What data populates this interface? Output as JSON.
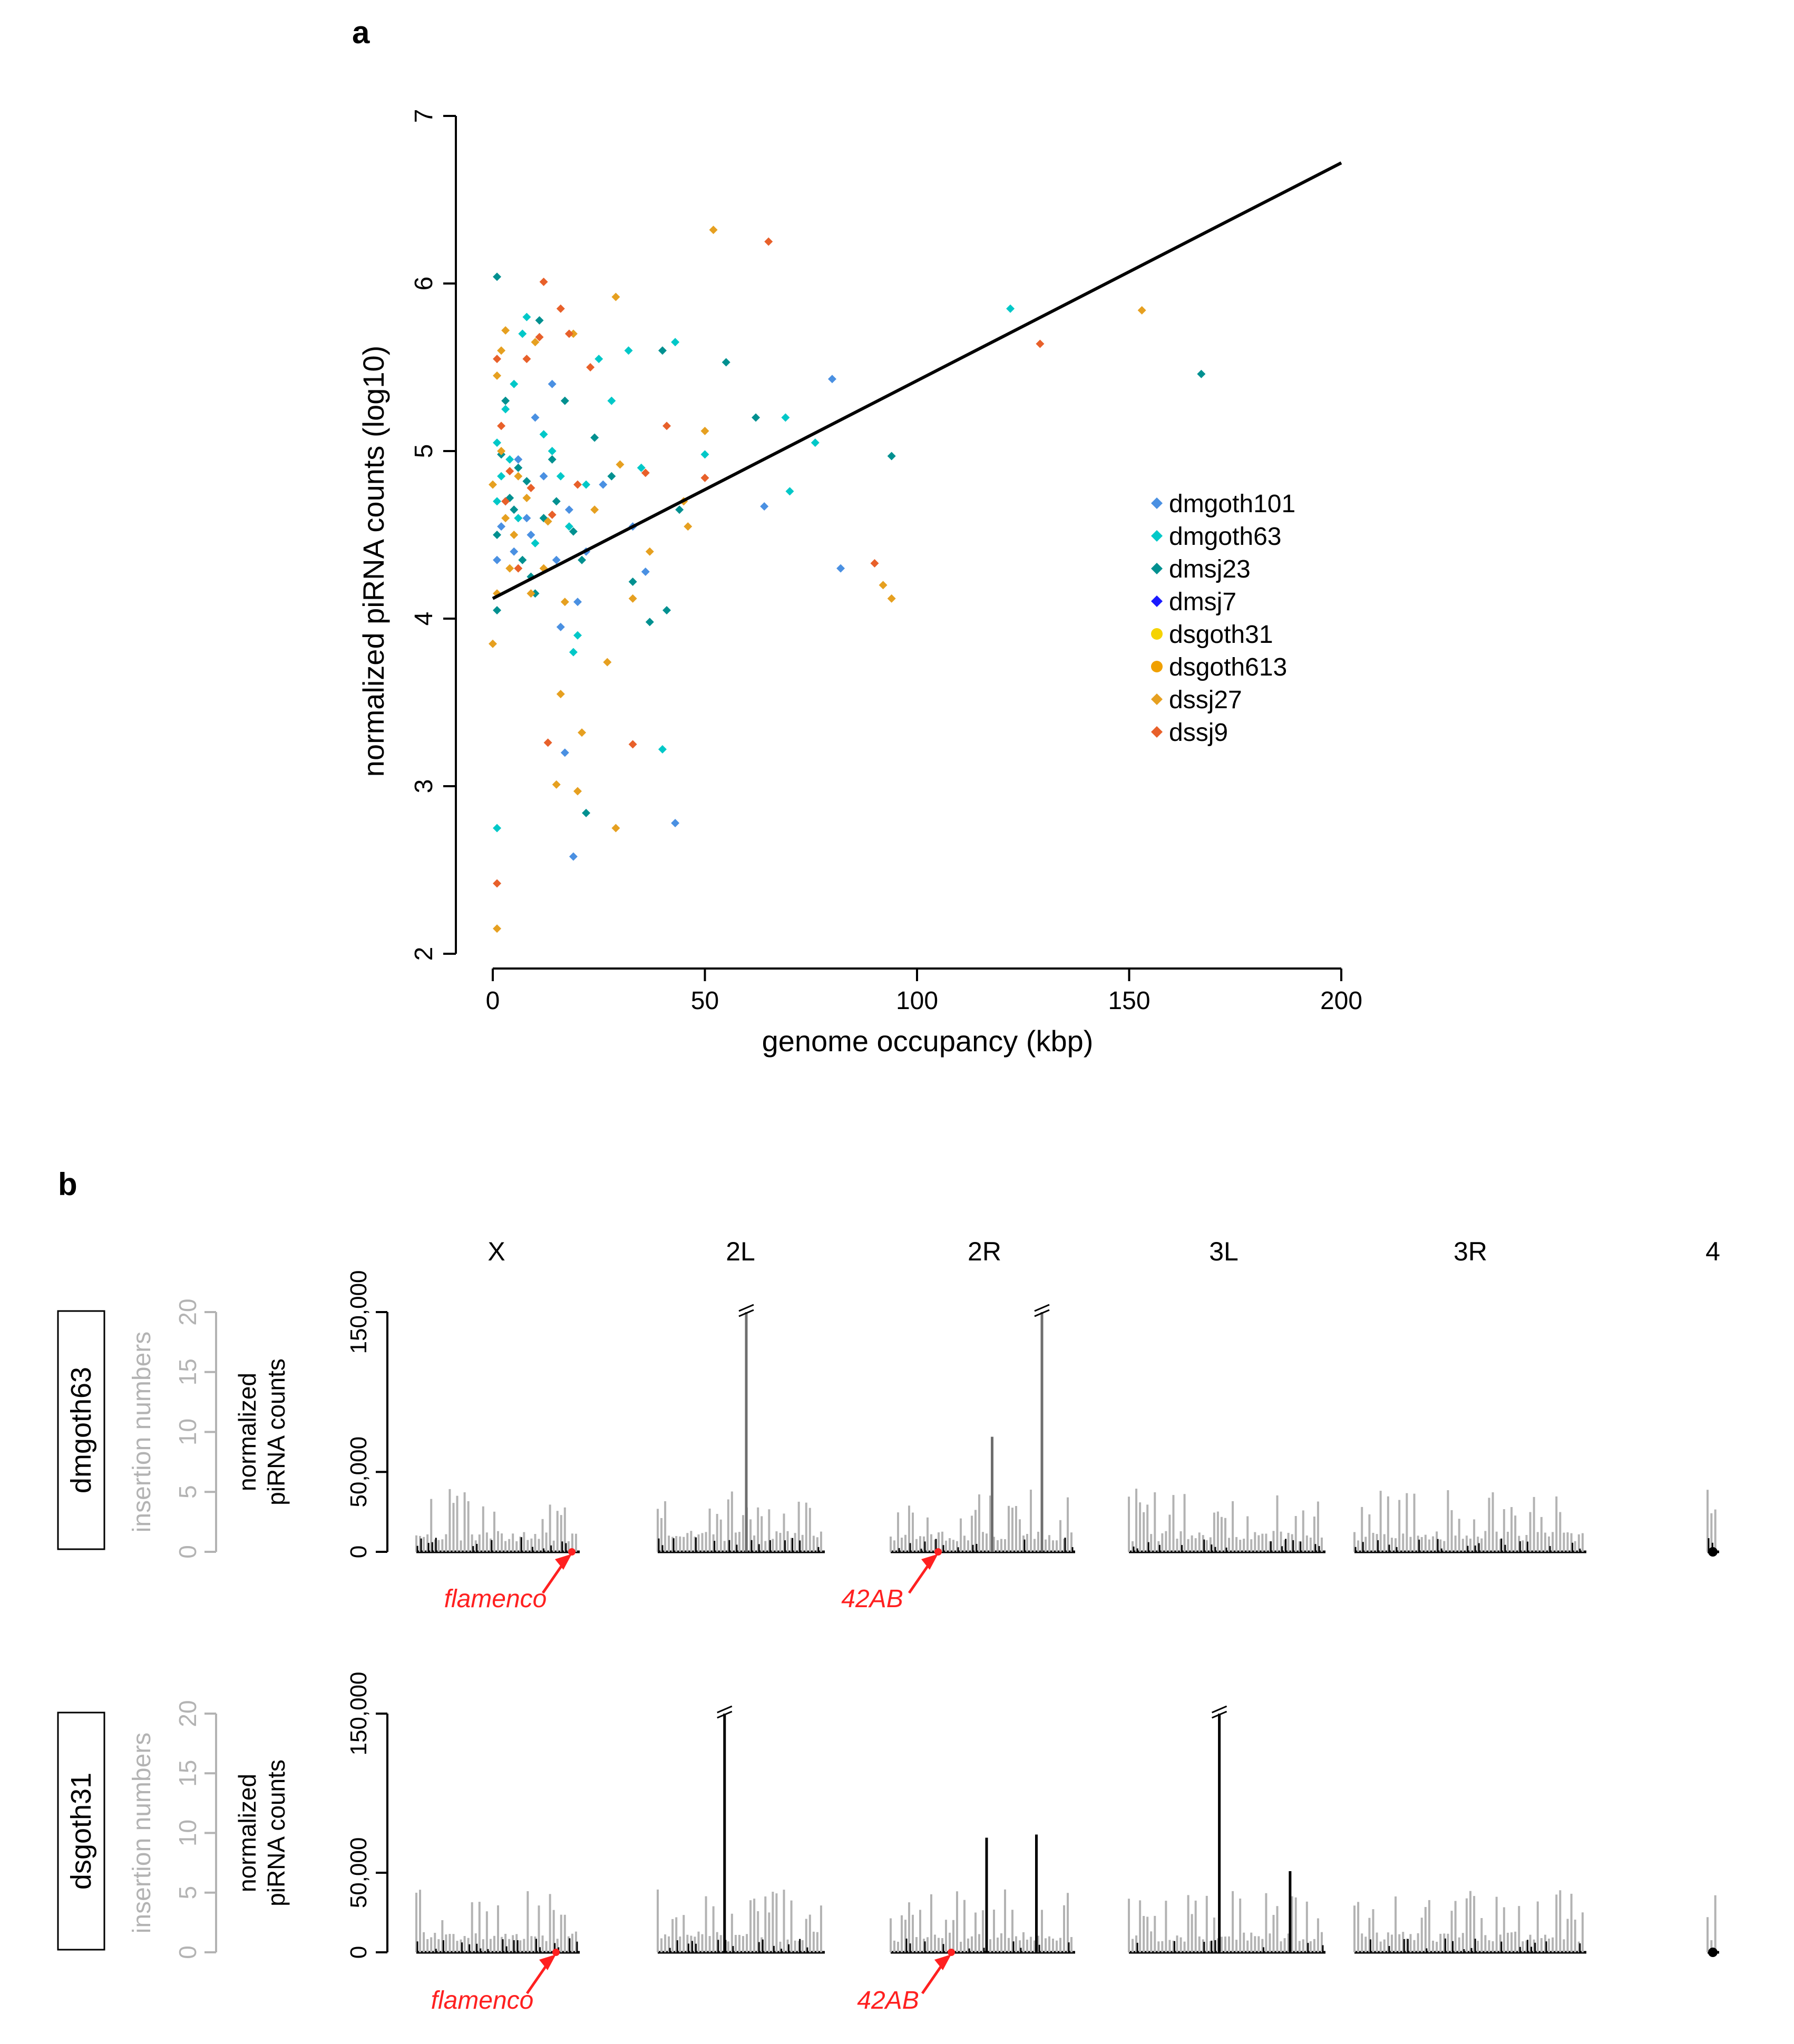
{
  "panel_a": {
    "label": "a",
    "legend_position": "right-middle",
    "chart_data": {
      "type": "scatter",
      "xlabel": "genome occupancy (kbp)",
      "ylabel": "normalized piRNA counts (log10)",
      "xlim": [
        0,
        200
      ],
      "ylim": [
        2,
        7
      ],
      "xticks": [
        "0",
        "50",
        "100",
        "150",
        "200"
      ],
      "yticks": [
        "2",
        "3",
        "4",
        "5",
        "6",
        "7"
      ],
      "fit_line": {
        "x": [
          0,
          200
        ],
        "y": [
          4.12,
          6.72
        ]
      },
      "series": [
        {
          "name": "dmgoth101",
          "color": "#4a90e2",
          "marker": "diamond",
          "points": [
            [
              1,
              4.35
            ],
            [
              2,
              4.55
            ],
            [
              3,
              4.7
            ],
            [
              5,
              4.4
            ],
            [
              6,
              4.95
            ],
            [
              8,
              4.6
            ],
            [
              9,
              4.5
            ],
            [
              10,
              5.2
            ],
            [
              12,
              4.85
            ],
            [
              14,
              5.4
            ],
            [
              15,
              4.35
            ],
            [
              16,
              3.95
            ],
            [
              17,
              3.2
            ],
            [
              18,
              4.65
            ],
            [
              19,
              2.58
            ],
            [
              20,
              4.1
            ],
            [
              22,
              4.4
            ],
            [
              26,
              4.8
            ],
            [
              33,
              4.55
            ],
            [
              36,
              4.28
            ],
            [
              43,
              2.78
            ],
            [
              64,
              4.67
            ],
            [
              80,
              5.43
            ],
            [
              82,
              4.3
            ]
          ]
        },
        {
          "name": "dmgoth63",
          "color": "#00c8c8",
          "marker": "diamond",
          "points": [
            [
              1,
              2.75
            ],
            [
              1,
              4.7
            ],
            [
              1,
              5.05
            ],
            [
              2,
              4.85
            ],
            [
              3,
              5.25
            ],
            [
              4,
              4.95
            ],
            [
              5,
              5.4
            ],
            [
              6,
              4.6
            ],
            [
              7,
              5.7
            ],
            [
              8,
              5.8
            ],
            [
              10,
              4.45
            ],
            [
              12,
              5.1
            ],
            [
              14,
              5.0
            ],
            [
              16,
              4.85
            ],
            [
              18,
              4.55
            ],
            [
              19,
              3.8
            ],
            [
              20,
              3.9
            ],
            [
              22,
              4.8
            ],
            [
              25,
              5.55
            ],
            [
              28,
              5.3
            ],
            [
              32,
              5.6
            ],
            [
              35,
              4.9
            ],
            [
              40,
              3.22
            ],
            [
              43,
              5.65
            ],
            [
              50,
              4.98
            ],
            [
              69,
              5.2
            ],
            [
              70,
              4.76
            ],
            [
              76,
              5.05
            ],
            [
              122,
              5.85
            ]
          ]
        },
        {
          "name": "dmsj23",
          "color": "#009090",
          "marker": "diamond",
          "points": [
            [
              1,
              6.04
            ],
            [
              1,
              4.05
            ],
            [
              1,
              4.5
            ],
            [
              2,
              4.98
            ],
            [
              3,
              5.3
            ],
            [
              4,
              4.72
            ],
            [
              5,
              4.65
            ],
            [
              6,
              4.9
            ],
            [
              7,
              4.35
            ],
            [
              8,
              4.82
            ],
            [
              9,
              4.25
            ],
            [
              10,
              4.15
            ],
            [
              11,
              5.78
            ],
            [
              12,
              4.6
            ],
            [
              14,
              4.95
            ],
            [
              15,
              4.7
            ],
            [
              17,
              5.3
            ],
            [
              19,
              4.52
            ],
            [
              21,
              4.35
            ],
            [
              22,
              2.84
            ],
            [
              24,
              5.08
            ],
            [
              28,
              4.85
            ],
            [
              33,
              4.22
            ],
            [
              37,
              3.98
            ],
            [
              40,
              5.6
            ],
            [
              41,
              4.05
            ],
            [
              44,
              4.65
            ],
            [
              55,
              5.53
            ],
            [
              62,
              5.2
            ],
            [
              94,
              4.97
            ],
            [
              167,
              5.46
            ]
          ]
        },
        {
          "name": "dmsj7",
          "color": "#1a1aff",
          "marker": "diamond",
          "points": []
        },
        {
          "name": "dsgoth31",
          "color": "#f5d300",
          "marker": "circle",
          "points": []
        },
        {
          "name": "dsgoth613",
          "color": "#f0a000",
          "marker": "circle",
          "points": []
        },
        {
          "name": "dssj27",
          "color": "#e6a020",
          "marker": "diamond",
          "points": [
            [
              0,
              3.85
            ],
            [
              0,
              4.8
            ],
            [
              1,
              2.15
            ],
            [
              1,
              5.45
            ],
            [
              1,
              4.15
            ],
            [
              2,
              5.6
            ],
            [
              2,
              5.0
            ],
            [
              3,
              4.6
            ],
            [
              3,
              5.72
            ],
            [
              4,
              4.3
            ],
            [
              5,
              4.5
            ],
            [
              6,
              4.85
            ],
            [
              8,
              4.72
            ],
            [
              9,
              4.15
            ],
            [
              10,
              5.65
            ],
            [
              12,
              4.3
            ],
            [
              13,
              4.58
            ],
            [
              15,
              3.01
            ],
            [
              16,
              3.55
            ],
            [
              17,
              4.1
            ],
            [
              19,
              5.7
            ],
            [
              20,
              2.97
            ],
            [
              21,
              3.32
            ],
            [
              24,
              4.65
            ],
            [
              27,
              3.74
            ],
            [
              29,
              5.92
            ],
            [
              29,
              2.75
            ],
            [
              30,
              4.92
            ],
            [
              33,
              4.12
            ],
            [
              37,
              4.4
            ],
            [
              45,
              4.7
            ],
            [
              46,
              4.55
            ],
            [
              50,
              5.12
            ],
            [
              52,
              6.32
            ],
            [
              92,
              4.2
            ],
            [
              94,
              4.12
            ],
            [
              153,
              5.84
            ]
          ]
        },
        {
          "name": "dssj9",
          "color": "#e8602a",
          "marker": "diamond",
          "points": [
            [
              1,
              2.42
            ],
            [
              1,
              5.55
            ],
            [
              2,
              5.15
            ],
            [
              3,
              4.7
            ],
            [
              4,
              4.88
            ],
            [
              6,
              4.3
            ],
            [
              8,
              5.55
            ],
            [
              9,
              4.78
            ],
            [
              11,
              5.68
            ],
            [
              12,
              6.01
            ],
            [
              13,
              3.26
            ],
            [
              14,
              4.62
            ],
            [
              16,
              5.85
            ],
            [
              18,
              5.7
            ],
            [
              20,
              4.8
            ],
            [
              23,
              5.5
            ],
            [
              33,
              3.25
            ],
            [
              36,
              4.87
            ],
            [
              41,
              5.15
            ],
            [
              50,
              4.84
            ],
            [
              65,
              6.25
            ],
            [
              90,
              4.33
            ],
            [
              129,
              5.64
            ]
          ]
        }
      ]
    }
  },
  "panel_b": {
    "label": "b",
    "chromosome_labels": [
      "X",
      "2L",
      "2R",
      "3L",
      "3R",
      "4"
    ],
    "left_axis_label": "insertion numbers",
    "left_axis_ticks": [
      "0",
      "5",
      "10",
      "15",
      "20"
    ],
    "right_axis_label_line1": "normalized",
    "right_axis_label_line2": "piRNA counts",
    "right_axis_ticks": [
      "0",
      "50,000",
      "150,000"
    ],
    "cluster_flamenco": "flamenco",
    "cluster_42AB": "42AB",
    "colors": {
      "grey": "#b3b3b3",
      "dark": "#6e6e6e",
      "black": "#000000",
      "red": "#ff2020"
    },
    "chart_data": [
      {
        "type": "bar",
        "strain": "dmgoth63",
        "peaks": [
          {
            "chrom": "2L",
            "pos": 0.53,
            "value": 150000,
            "color": "dark",
            "broken": true
          },
          {
            "chrom": "2R",
            "pos": 0.55,
            "value": 72000,
            "color": "dark",
            "broken": false
          },
          {
            "chrom": "2R",
            "pos": 0.82,
            "value": 150000,
            "color": "dark",
            "broken": true
          }
        ]
      },
      {
        "type": "bar",
        "strain": "dsgoth31",
        "peaks": [
          {
            "chrom": "2L",
            "pos": 0.4,
            "value": 150000,
            "color": "black",
            "broken": true
          },
          {
            "chrom": "2R",
            "pos": 0.52,
            "value": 72000,
            "color": "black",
            "broken": false
          },
          {
            "chrom": "2R",
            "pos": 0.79,
            "value": 74000,
            "color": "black",
            "broken": false
          },
          {
            "chrom": "3L",
            "pos": 0.46,
            "value": 150000,
            "color": "black",
            "broken": true
          },
          {
            "chrom": "3L",
            "pos": 0.82,
            "value": 51000,
            "color": "black",
            "broken": false
          }
        ]
      }
    ]
  }
}
